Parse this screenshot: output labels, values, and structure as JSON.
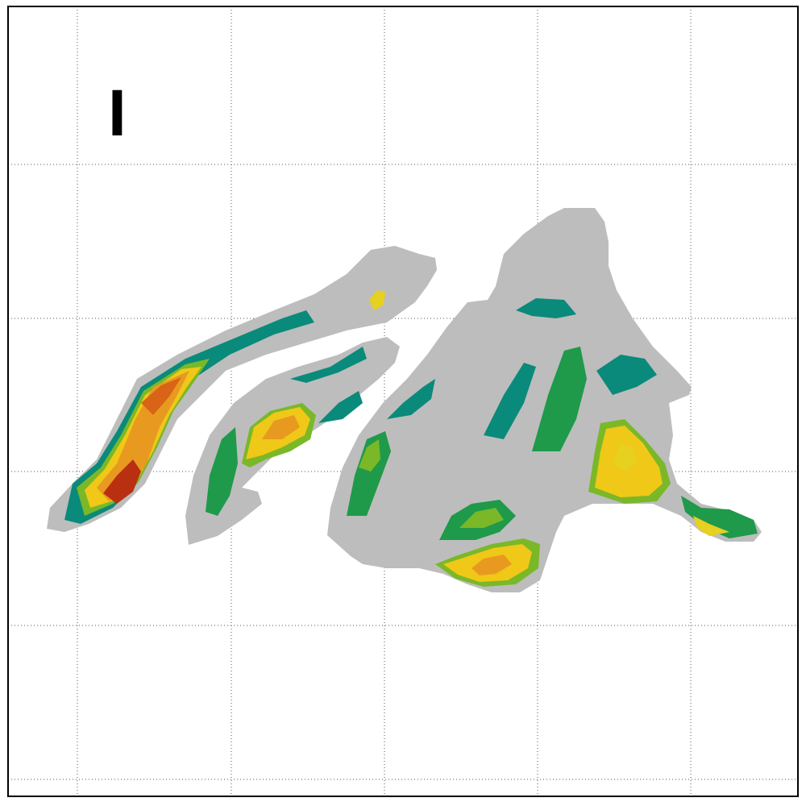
{
  "panel": {
    "label": "I"
  },
  "colors": {
    "background": "#ffffff",
    "land_mask": "#bdbdbd",
    "grid": "#555555",
    "frame": "#000000",
    "scale": [
      "#0a8a7a",
      "#1e9a4a",
      "#7ab828",
      "#e6d020",
      "#f0c818",
      "#e89a20",
      "#d86418",
      "#b83010"
    ]
  },
  "map": {
    "gridlines": true,
    "grid_style": "dotted"
  }
}
